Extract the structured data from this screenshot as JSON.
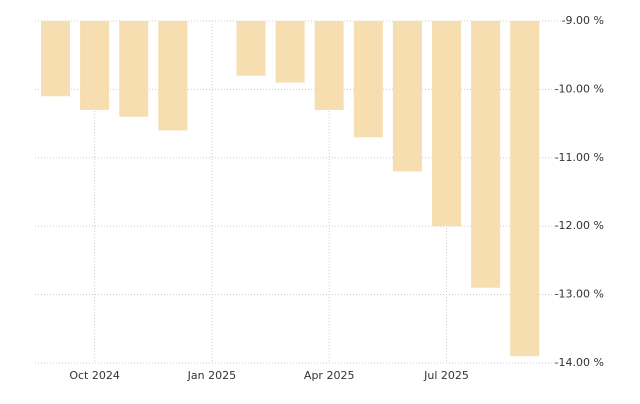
{
  "chart_data": {
    "type": "bar",
    "categories": [
      null,
      "Oct 2024",
      null,
      null,
      "Jan 2025",
      null,
      null,
      "Apr 2025",
      null,
      null,
      "Jul 2025",
      null,
      null
    ],
    "values": [
      -10.1,
      -10.3,
      -10.4,
      -10.6,
      null,
      -9.8,
      -9.9,
      -10.3,
      -10.7,
      -11.2,
      -12.0,
      -12.9,
      -13.9
    ],
    "color": "#f7deb0",
    "ylim": [
      -14,
      -9
    ],
    "yticks": [
      {
        "value": -9,
        "label": "-9.00 %"
      },
      {
        "value": -10,
        "label": "-10.00 %"
      },
      {
        "value": -11,
        "label": "-11.00 %"
      },
      {
        "value": -12,
        "label": "-12.00 %"
      },
      {
        "value": -13,
        "label": "-13.00 %"
      },
      {
        "value": -14,
        "label": "-14.00 %"
      }
    ],
    "grid": true
  }
}
